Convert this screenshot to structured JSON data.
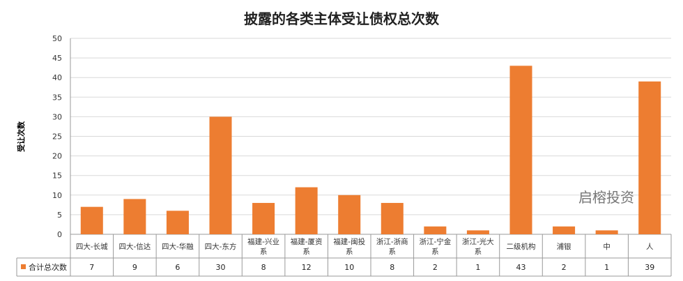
{
  "chart_data": {
    "type": "bar",
    "title": "披露的各类主体受让债权总次数",
    "ylabel": "受让次数",
    "xlabel": "",
    "ylim": [
      0,
      50
    ],
    "yticks": [
      0,
      5,
      10,
      15,
      20,
      25,
      30,
      35,
      40,
      45,
      50
    ],
    "grid": true,
    "legend": "data-table",
    "categories": [
      [
        "四大-长城"
      ],
      [
        "四大-信达"
      ],
      [
        "四大-华融"
      ],
      [
        "四大-东方"
      ],
      [
        "福建-兴业",
        "系"
      ],
      [
        "福建-厦资",
        "系"
      ],
      [
        "福建-闽投",
        "系"
      ],
      [
        "浙江-浙商",
        "系"
      ],
      [
        "浙江-宁金",
        "系"
      ],
      [
        "浙江-光大",
        "系"
      ],
      [
        "二级机构"
      ],
      [
        "浦银"
      ],
      [
        "中"
      ],
      [
        "人"
      ]
    ],
    "series": [
      {
        "name": "合计总次数",
        "values": [
          7,
          9,
          6,
          30,
          8,
          12,
          10,
          8,
          2,
          1,
          43,
          2,
          1,
          39
        ],
        "color": "#ED7D31"
      }
    ]
  },
  "watermark": "启榕投资"
}
